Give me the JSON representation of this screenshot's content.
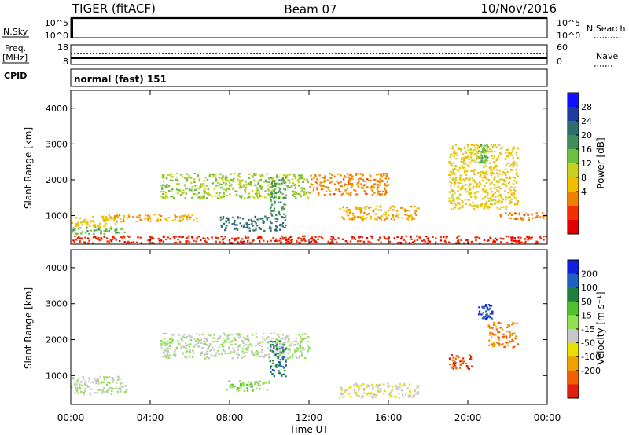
{
  "header": {
    "station": "TIGER (fitACF)",
    "beam": "Beam 07",
    "date": "10/Nov/2016"
  },
  "status_panels": {
    "nsky_label": "N.Sky",
    "nsky_ticks": [
      "10^5",
      "10^0"
    ],
    "nsearch_label": "N.Search",
    "nsearch_ticks": [
      "10^5",
      "10^0"
    ],
    "freq_label": "Freq.",
    "freq_unit": "[MHz]",
    "freq_ticks": [
      "18",
      "8"
    ],
    "nave_label": "Nave",
    "nave_ticks": [
      "60",
      "0"
    ],
    "cpid_label": "CPID",
    "cpid_text": "normal (fast) 151"
  },
  "colors": {
    "power": [
      "#1010ff",
      "#1f3d9e",
      "#2f6e6e",
      "#3f8f5a",
      "#6fbf3f",
      "#c8d020",
      "#f0c000",
      "#f08000",
      "#f03000",
      "#e00000"
    ],
    "velocity": [
      "#1020e0",
      "#2060c0",
      "#208040",
      "#50c030",
      "#90e050",
      "#c8c8c8",
      "#e8e000",
      "#f0a000",
      "#f06000",
      "#e02010"
    ]
  },
  "chart_data": [
    {
      "type": "heatmap",
      "panel": "power",
      "ylabel": "Slant Range [km]",
      "ylim": [
        200,
        4500
      ],
      "yticks": [
        "4000",
        "3000",
        "2000",
        "1000"
      ],
      "xlim": [
        "00:00",
        "24:00"
      ],
      "colorbar_label": "Power [dB]",
      "colorbar_ticks": [
        "28",
        "24",
        "20",
        "16",
        "12",
        "8",
        "4"
      ],
      "echo_regions": [
        {
          "t0": 0.0,
          "t1": 2.5,
          "r0": 700,
          "r1": 1000,
          "power": 12
        },
        {
          "t0": 0.0,
          "t1": 2.8,
          "r0": 500,
          "r1": 700,
          "power": 18
        },
        {
          "t0": 1.5,
          "t1": 6.5,
          "r0": 850,
          "r1": 1050,
          "power": 10
        },
        {
          "t0": 4.5,
          "t1": 12.0,
          "r0": 1500,
          "r1": 2200,
          "power": 16
        },
        {
          "t0": 7.5,
          "t1": 10.8,
          "r0": 600,
          "r1": 1000,
          "power": 24
        },
        {
          "t0": 10.0,
          "t1": 10.8,
          "r0": 1000,
          "r1": 2100,
          "power": 20
        },
        {
          "t0": 12.0,
          "t1": 16.0,
          "r0": 1600,
          "r1": 2200,
          "power": 8
        },
        {
          "t0": 13.5,
          "t1": 17.5,
          "r0": 900,
          "r1": 1300,
          "power": 10
        },
        {
          "t0": 19.0,
          "t1": 22.5,
          "r0": 1200,
          "r1": 3000,
          "power": 12
        },
        {
          "t0": 20.5,
          "t1": 21.0,
          "r0": 2500,
          "r1": 3000,
          "power": 18
        },
        {
          "t0": 21.5,
          "t1": 24.0,
          "r0": 900,
          "r1": 1100,
          "power": 8
        },
        {
          "t0": 0.0,
          "t1": 24.0,
          "r0": 250,
          "r1": 450,
          "power": 4
        }
      ]
    },
    {
      "type": "heatmap",
      "panel": "velocity",
      "ylabel": "Slant Range [km]",
      "ylim": [
        200,
        4500
      ],
      "yticks": [
        "4000",
        "3000",
        "2000",
        "1000"
      ],
      "xlabel": "Time UT",
      "xlim": [
        "00:00",
        "24:00"
      ],
      "xticks": [
        "00:00",
        "04:00",
        "08:00",
        "12:00",
        "16:00",
        "20:00",
        "00:00"
      ],
      "colorbar_label": "Velocity [m s⁻¹]",
      "colorbar_ticks": [
        "200",
        "100",
        "50",
        "15",
        "-15",
        "-50",
        "-100",
        "-200"
      ],
      "echo_regions": [
        {
          "t0": 0.0,
          "t1": 2.8,
          "r0": 500,
          "r1": 1000,
          "velocity": 0
        },
        {
          "t0": 4.5,
          "t1": 12.0,
          "r0": 1500,
          "r1": 2200,
          "velocity": 0
        },
        {
          "t0": 7.8,
          "t1": 10.0,
          "r0": 600,
          "r1": 900,
          "velocity": 40
        },
        {
          "t0": 10.0,
          "t1": 10.8,
          "r0": 1000,
          "r1": 2000,
          "velocity": 150
        },
        {
          "t0": 13.5,
          "t1": 17.5,
          "r0": 400,
          "r1": 800,
          "velocity": -40
        },
        {
          "t0": 19.0,
          "t1": 20.2,
          "r0": 1200,
          "r1": 1600,
          "velocity": -200
        },
        {
          "t0": 20.5,
          "t1": 21.2,
          "r0": 2600,
          "r1": 3000,
          "velocity": 200
        },
        {
          "t0": 21.0,
          "t1": 22.5,
          "r0": 1800,
          "r1": 2500,
          "velocity": -150
        }
      ]
    }
  ]
}
